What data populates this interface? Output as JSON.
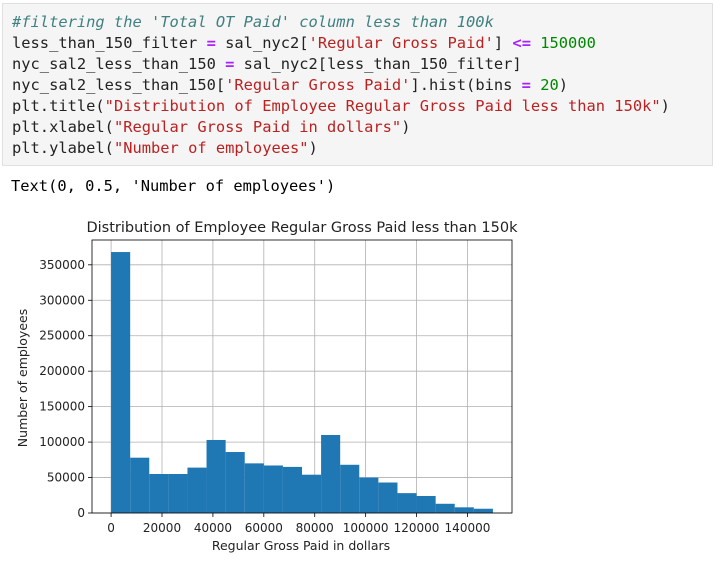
{
  "code_cell": {
    "lines": [
      {
        "comment": "#filtering the 'Total OT Paid' column less than 100k"
      },
      {
        "a": "less_than_150_filter ",
        "op": "=",
        "b": " sal_nyc2[",
        "s1": "'Regular Gross Paid'",
        "c": "] ",
        "op2": "<=",
        "d": " ",
        "n": "150000"
      },
      {
        "a": "nyc_sal2_less_than_150 ",
        "op": "=",
        "b": " sal_nyc2[less_than_150_filter]"
      },
      {
        "a": "nyc_sal2_less_than_150[",
        "s1": "'Regular Gross Paid'",
        "b": "].hist(bins ",
        "op": "=",
        "c": " ",
        "n": "20",
        "d": ")"
      },
      {
        "a": "plt.title(",
        "s1": "\"Distribution of Employee Regular Gross Paid less than 150k\"",
        "b": ")"
      },
      {
        "a": "plt.xlabel(",
        "s1": "\"Regular Gross Paid in dollars\"",
        "b": ")"
      },
      {
        "a": "plt.ylabel(",
        "s1": "\"Number of employees\"",
        "b": ")"
      }
    ]
  },
  "output_text": "Text(0, 0.5, 'Number of employees')",
  "chart_data": {
    "type": "bar",
    "title": "Distribution of Employee Regular Gross Paid less than 150k",
    "xlabel": "Regular Gross Paid in dollars",
    "ylabel": "Number of employees",
    "xlim": [
      -7500,
      157500
    ],
    "ylim": [
      0,
      385000
    ],
    "grid": true,
    "bar_color": "#1f77b4",
    "bin_edges": [
      0,
      7500,
      15000,
      22500,
      30000,
      37500,
      45000,
      52500,
      60000,
      67500,
      75000,
      82500,
      90000,
      97500,
      105000,
      112500,
      120000,
      127500,
      135000,
      142500,
      150000
    ],
    "counts": [
      368000,
      78000,
      55000,
      55000,
      64000,
      103000,
      86000,
      70000,
      67000,
      65000,
      54000,
      110000,
      68000,
      50000,
      43000,
      28000,
      24000,
      13000,
      8000,
      6000
    ],
    "x_ticks": [
      0,
      20000,
      40000,
      60000,
      80000,
      100000,
      120000,
      140000
    ],
    "y_ticks": [
      0,
      50000,
      100000,
      150000,
      200000,
      250000,
      300000,
      350000
    ]
  }
}
